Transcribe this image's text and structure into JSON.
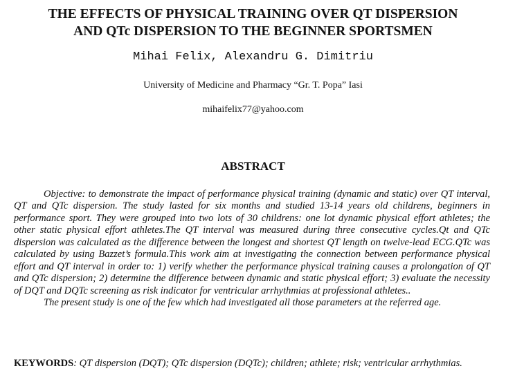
{
  "header": {
    "title_lines": [
      "THE EFFECTS OF PHYSICAL TRAINING OVER QT DISPERSION",
      "AND QTc DISPERSION TO THE BEGINNER SPORTSMEN"
    ],
    "authors": "Mihai Felix, Alexandru G. Dimitriu",
    "affiliation": "University of Medicine and Pharmacy “Gr. T. Popa” Iasi",
    "email": "mihaifelix77@yahoo.com"
  },
  "abstract": {
    "heading": "ABSTRACT",
    "paragraphs": [
      "Objective: to demonstrate the impact of performance physical training (dynamic and static) over QT interval, QT and QTc dispersion. The study lasted for six months and studied 13-14 years old childrens, beginners in performance sport. They were grouped into two lots of 30 childrens: one lot dynamic physical effort athletes; the other static physical effort athletes.The QT interval was measured during three consecutive cycles.Qt and QTc dispersion was calculated as the difference between the longest and shortest QT length on twelve-lead ECG.QTc was calculated by using Bazzet’s formula.This work aim at investigating the connection between performance physical effort and QT interval in order to: 1) verify whether the performance physical training causes a prolongation of QT and QTc dispersion; 2) determine the difference between dynamic and static physical effort; 3) evaluate the necessity of DQT and DQTc screening as risk indicator for ventricular arrhythmias at professional athletes..",
      "The present study is one of the few which had investigated all those parameters at the referred age."
    ]
  },
  "keywords": {
    "label": "KEYWORDS",
    "text": ": QT dispersion (DQT); QTc dispersion (DQTc); children; athlete; risk; ventricular arrhythmias."
  }
}
